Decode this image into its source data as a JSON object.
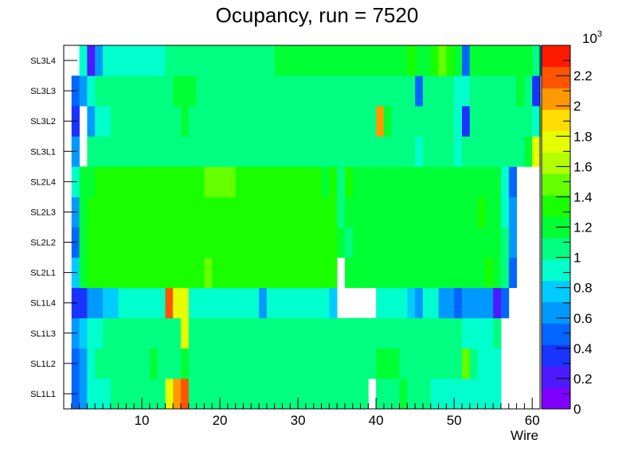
{
  "chart_data": {
    "type": "heatmap",
    "title": "Ocupancy, run = 7520",
    "xlabel": "Wire",
    "ylabel": "",
    "xlim": [
      0,
      61
    ],
    "x_ticks": [
      10,
      20,
      30,
      40,
      50,
      60
    ],
    "y_categories": [
      "SL1L1",
      "SL1L2",
      "SL1L3",
      "SL1L4",
      "SL2L1",
      "SL2L2",
      "SL2L3",
      "SL2L4",
      "SL3L1",
      "SL3L2",
      "SL3L3",
      "SL3L4"
    ],
    "z_range": [
      0,
      2400
    ],
    "z_ticks": [
      0,
      0.2,
      0.4,
      0.6,
      0.8,
      1,
      1.2,
      1.4,
      1.6,
      1.8,
      2,
      2.2
    ],
    "z_exponent": "10",
    "z_exponent_power": "3",
    "values": [
      [
        550,
        700,
        850,
        850,
        850,
        1000,
        1000,
        1000,
        1000,
        1000,
        1000,
        1000,
        1800,
        2000,
        2200,
        1100,
        1100,
        1100,
        1100,
        1100,
        1100,
        1100,
        1100,
        1100,
        1100,
        1100,
        1100,
        1100,
        1100,
        1000,
        1000,
        1000,
        1000,
        1000,
        1100,
        1000,
        1100,
        1100,
        0,
        1100,
        1100,
        1100,
        1200,
        1100,
        1100,
        1000,
        950,
        950,
        950,
        950,
        950,
        950,
        950,
        850,
        850,
        0,
        0,
        0,
        0,
        0,
        0
      ],
      [
        500,
        700,
        850,
        1100,
        1100,
        1100,
        1100,
        1100,
        1100,
        1100,
        1200,
        1100,
        1100,
        1100,
        1200,
        1100,
        1100,
        1100,
        1100,
        1100,
        1100,
        1100,
        1100,
        1100,
        1100,
        1100,
        1100,
        1100,
        1100,
        1100,
        1100,
        1100,
        1100,
        1100,
        1100,
        1100,
        1100,
        1100,
        1100,
        1200,
        1200,
        1200,
        1100,
        1100,
        1100,
        1100,
        1100,
        1100,
        1100,
        1100,
        1500,
        1000,
        950,
        950,
        950,
        0,
        0,
        0,
        0,
        0,
        0
      ],
      [
        600,
        800,
        900,
        900,
        1000,
        1000,
        1000,
        1100,
        1100,
        1100,
        1100,
        1100,
        1100,
        1100,
        1800,
        1100,
        1100,
        1100,
        1100,
        1100,
        1100,
        1100,
        1100,
        1100,
        1100,
        1100,
        1100,
        1100,
        1100,
        1100,
        1100,
        1100,
        1100,
        1100,
        1100,
        1100,
        1100,
        1100,
        1100,
        1100,
        1100,
        1100,
        1100,
        1100,
        1000,
        1000,
        1000,
        1000,
        1000,
        1000,
        900,
        900,
        900,
        900,
        1100,
        0,
        0,
        0,
        0,
        0,
        0
      ],
      [
        300,
        400,
        600,
        600,
        750,
        750,
        850,
        850,
        850,
        850,
        850,
        850,
        2200,
        1800,
        1800,
        850,
        850,
        850,
        850,
        850,
        850,
        850,
        850,
        850,
        600,
        850,
        850,
        850,
        850,
        850,
        850,
        850,
        850,
        750,
        0,
        0,
        0,
        0,
        0,
        850,
        850,
        850,
        850,
        750,
        600,
        850,
        850,
        600,
        600,
        450,
        600,
        600,
        600,
        600,
        200,
        450,
        0,
        0,
        0,
        0,
        0
      ],
      [
        800,
        1200,
        1300,
        1300,
        1300,
        1400,
        1300,
        1300,
        1300,
        1300,
        1400,
        1400,
        1400,
        1400,
        1400,
        1400,
        1400,
        1500,
        1400,
        1400,
        1300,
        1300,
        1400,
        1400,
        1400,
        1400,
        1400,
        1400,
        1400,
        1400,
        1400,
        1400,
        1400,
        1400,
        0,
        1200,
        1200,
        1200,
        1200,
        1200,
        1200,
        1200,
        1200,
        1200,
        1200,
        1200,
        1200,
        1200,
        1200,
        1200,
        1200,
        1200,
        1200,
        1300,
        1200,
        1000,
        500,
        0,
        0,
        0,
        0
      ],
      [
        500,
        1200,
        1300,
        1300,
        1300,
        1300,
        1300,
        1300,
        1300,
        1300,
        1300,
        1300,
        1300,
        1300,
        1300,
        1300,
        1300,
        1300,
        1400,
        1400,
        1300,
        1300,
        1300,
        1300,
        1300,
        1400,
        1400,
        1400,
        1400,
        1300,
        1300,
        1300,
        1300,
        1300,
        1200,
        1100,
        1200,
        1200,
        1200,
        1200,
        1200,
        1200,
        1200,
        1200,
        1200,
        1200,
        1200,
        1200,
        1200,
        1200,
        1200,
        1200,
        1200,
        1200,
        1200,
        1000,
        700,
        0,
        0,
        0,
        0
      ],
      [
        700,
        1200,
        1300,
        1300,
        1400,
        1300,
        1300,
        1300,
        1300,
        1300,
        1300,
        1400,
        1400,
        1300,
        1400,
        1400,
        1400,
        1400,
        1400,
        1400,
        1400,
        1300,
        1300,
        1300,
        1300,
        1300,
        1300,
        1300,
        1300,
        1300,
        1300,
        1300,
        1300,
        1300,
        1100,
        1200,
        1200,
        1200,
        1200,
        1200,
        1200,
        1200,
        1200,
        1200,
        1200,
        1200,
        1200,
        1200,
        1200,
        1200,
        1200,
        1200,
        1300,
        1200,
        1200,
        950,
        600,
        0,
        0,
        0,
        0
      ],
      [
        950,
        1200,
        1200,
        1300,
        1300,
        1300,
        1300,
        1400,
        1300,
        1300,
        1400,
        1400,
        1400,
        1400,
        1400,
        1400,
        1400,
        1500,
        1500,
        1500,
        1500,
        1300,
        1300,
        1300,
        1300,
        1300,
        1300,
        1300,
        1300,
        1300,
        1300,
        1300,
        1200,
        1300,
        1100,
        1300,
        1200,
        1200,
        1200,
        1200,
        1200,
        1200,
        1200,
        1200,
        1200,
        1200,
        1200,
        1200,
        1200,
        1200,
        1200,
        1200,
        1200,
        1200,
        1200,
        950,
        500,
        0,
        0,
        0,
        0
      ],
      [
        600,
        0,
        1000,
        1000,
        1100,
        1100,
        1100,
        1100,
        1100,
        1100,
        1100,
        1100,
        1000,
        1000,
        1100,
        1100,
        1000,
        1000,
        1100,
        1100,
        1100,
        1100,
        1100,
        1100,
        1100,
        1100,
        1100,
        1100,
        1100,
        1100,
        1100,
        1100,
        1100,
        1100,
        1100,
        1100,
        1100,
        1100,
        1100,
        1100,
        1100,
        1100,
        1100,
        1100,
        850,
        1100,
        1100,
        1100,
        1100,
        850,
        1000,
        1100,
        1100,
        1100,
        1100,
        1100,
        1100,
        1100,
        1200,
        1800,
        0
      ],
      [
        300,
        0,
        700,
        950,
        950,
        1000,
        1100,
        1100,
        1100,
        1100,
        1100,
        1100,
        1100,
        1100,
        1200,
        1100,
        1100,
        1100,
        1100,
        1100,
        1100,
        1100,
        1100,
        1100,
        1100,
        1100,
        1100,
        1100,
        1100,
        1100,
        1100,
        1100,
        1100,
        1100,
        1100,
        1100,
        1100,
        1100,
        1100,
        2100,
        1200,
        1100,
        1100,
        1100,
        1000,
        1100,
        1100,
        1100,
        1100,
        950,
        400,
        1100,
        1100,
        1100,
        1100,
        1100,
        1100,
        1100,
        1100,
        950,
        1800
      ],
      [
        500,
        700,
        950,
        1000,
        1000,
        1100,
        1100,
        1100,
        1100,
        1100,
        1100,
        1100,
        1100,
        1200,
        1200,
        1200,
        1100,
        1100,
        1100,
        1100,
        1100,
        1100,
        1100,
        1100,
        1100,
        1100,
        1100,
        1100,
        1100,
        1100,
        1100,
        1100,
        1100,
        1100,
        1100,
        1100,
        1100,
        1100,
        1100,
        1100,
        1100,
        1100,
        1100,
        1000,
        500,
        1100,
        1100,
        1100,
        1100,
        850,
        850,
        1100,
        1100,
        1100,
        1100,
        1100,
        1100,
        1200,
        1000,
        400,
        0
      ],
      [
        0,
        850,
        250,
        600,
        950,
        950,
        950,
        950,
        950,
        950,
        950,
        950,
        1100,
        1100,
        1100,
        1100,
        1100,
        1100,
        1100,
        1100,
        1100,
        1100,
        1100,
        1100,
        1100,
        1100,
        1200,
        1200,
        1200,
        1200,
        1200,
        1200,
        1200,
        1200,
        1200,
        1200,
        1200,
        1200,
        1200,
        1200,
        1200,
        1200,
        1200,
        1300,
        1200,
        1200,
        1300,
        1500,
        1300,
        1200,
        450,
        1200,
        1200,
        1200,
        1200,
        1200,
        1200,
        1200,
        1200,
        1000,
        600
      ]
    ]
  },
  "palette": [
    "#7f00ff",
    "#4d1aff",
    "#1a33ff",
    "#0066ff",
    "#0099ff",
    "#00ccff",
    "#00ffcc",
    "#00ff80",
    "#00ff33",
    "#19ff00",
    "#66ff00",
    "#b3ff00",
    "#e6ff00",
    "#ffdd00",
    "#ff9900",
    "#ff5500",
    "#ff1a00"
  ]
}
